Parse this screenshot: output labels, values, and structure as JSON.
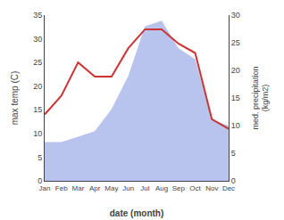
{
  "chart_data": {
    "type": "line",
    "xlabel": "date (month)",
    "ylabel": "max temp (C)",
    "y2label": "med. precipitation\n(kg/m2)",
    "categories": [
      "Jan",
      "Feb",
      "Mar",
      "Apr",
      "May",
      "Jun",
      "Jul",
      "Aug",
      "Sep",
      "Oct",
      "Nov",
      "Dec"
    ],
    "series": [
      {
        "type": "area",
        "axis": "y2",
        "color": "#b8c4ed",
        "values": [
          7,
          7,
          8,
          9,
          13,
          19,
          28,
          29,
          24,
          22,
          11,
          10
        ]
      },
      {
        "type": "line",
        "color": "#cc3333",
        "values": [
          14,
          18,
          25,
          22,
          22,
          28,
          32,
          32,
          29,
          27,
          13,
          11
        ]
      }
    ],
    "ylim": [
      0,
      35
    ],
    "yticks": [
      0,
      5,
      10,
      15,
      20,
      25,
      30,
      35
    ],
    "y2lim": [
      0,
      30
    ],
    "y2ticks": [
      0,
      5,
      10,
      15,
      20,
      25,
      30
    ],
    "grid": false
  }
}
